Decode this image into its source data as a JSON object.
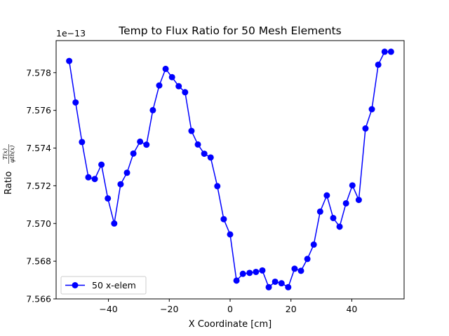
{
  "chart_data": {
    "type": "line",
    "title": "Temp to Flux Ratio for 50 Mesh Elements",
    "xlabel": "X Coordinate [cm]",
    "ylabel": "Ratio",
    "ylabel_numerator": "T(x)",
    "ylabel_denominator": "φth(x)",
    "y_offset_text": "1e−13",
    "xlim": [
      -57.2,
      57.2
    ],
    "ylim": [
      7.566,
      7.5797
    ],
    "x_ticks": [
      -40,
      -20,
      0,
      20,
      40
    ],
    "x_tick_labels": [
      "−40",
      "−20",
      "0",
      "20",
      "40"
    ],
    "y_ticks": [
      7.566,
      7.568,
      7.57,
      7.572,
      7.574,
      7.576,
      7.578
    ],
    "y_tick_labels": [
      "7.566",
      "7.568",
      "7.570",
      "7.572",
      "7.574",
      "7.576",
      "7.578"
    ],
    "grid": false,
    "legend_position": "lower-left",
    "series": [
      {
        "name": "50 x-elem",
        "color": "#0000ff",
        "marker": "circle",
        "x": [
          -52.9,
          -50.8,
          -48.7,
          -46.6,
          -44.5,
          -42.3,
          -40.2,
          -38.1,
          -36.0,
          -33.9,
          -31.8,
          -29.6,
          -27.5,
          -25.4,
          -23.3,
          -21.2,
          -19.1,
          -16.9,
          -14.8,
          -12.7,
          -10.6,
          -8.5,
          -6.4,
          -4.2,
          -2.1,
          0.0,
          2.1,
          4.2,
          6.4,
          8.5,
          10.6,
          12.7,
          14.8,
          16.9,
          19.1,
          21.2,
          23.3,
          25.4,
          27.5,
          29.6,
          31.8,
          33.9,
          36.0,
          38.1,
          40.2,
          42.3,
          44.5,
          46.6,
          48.7,
          50.8,
          52.9
        ],
        "values": [
          7.57862,
          7.57642,
          7.57432,
          7.57245,
          7.57236,
          7.57312,
          7.57133,
          7.57,
          7.57208,
          7.57269,
          7.57371,
          7.57434,
          7.57418,
          7.57601,
          7.57732,
          7.5782,
          7.57776,
          7.57728,
          7.57696,
          7.57491,
          7.57419,
          7.5737,
          7.5735,
          7.57198,
          7.57023,
          7.56942,
          7.56697,
          7.56733,
          7.56738,
          7.56743,
          7.56751,
          7.56662,
          7.56691,
          7.56683,
          7.56662,
          7.5676,
          7.56749,
          7.56812,
          7.56888,
          7.57063,
          7.57149,
          7.57029,
          7.56983,
          7.57107,
          7.57202,
          7.57125,
          7.57504,
          7.57606,
          7.57842,
          7.57911,
          7.57911
        ]
      }
    ]
  },
  "colors": {
    "series_line": "#0000ff",
    "axes": "#000000",
    "background": "#ffffff"
  }
}
